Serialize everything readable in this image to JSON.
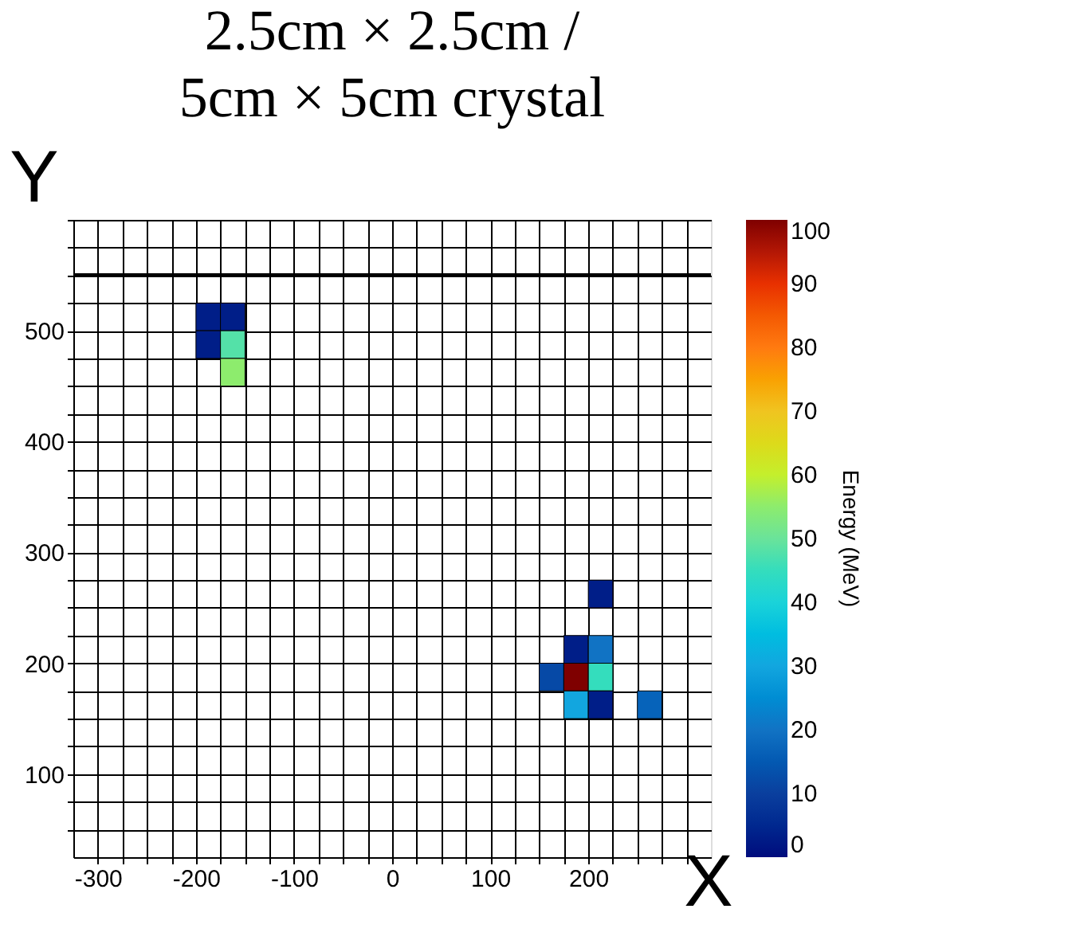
{
  "chart_data": {
    "type": "scatter",
    "title": "2.5cm × 2.5cm /\n5cm × 5cm crystal",
    "xlabel": "X",
    "ylabel": "Y",
    "clabel": "Energy (MeV)",
    "marker": "square",
    "x": [
      -187.5,
      -162.5,
      -187.5,
      -162.5,
      -162.5,
      212.5,
      187.5,
      212.5,
      162.5,
      187.5,
      212.5,
      187.5,
      212.5,
      262.5
    ],
    "values": [
      512.5,
      512.5,
      487.5,
      487.5,
      462.5,
      262.5,
      212.5,
      212.5,
      187.5,
      187.5,
      187.5,
      162.5,
      162.5,
      162.5
    ],
    "cvalues": [
      3,
      3,
      3,
      48,
      55,
      3,
      3,
      20,
      12,
      100,
      45,
      30,
      3,
      17
    ],
    "xlim": [
      -325,
      325
    ],
    "ylim": [
      25,
      600
    ],
    "xticks": [
      -300,
      {
        "value": -275,
        "label": null
      },
      {
        "value": -250,
        "label": null
      },
      {
        "value": -225,
        "label": null
      },
      -200,
      {
        "value": -175,
        "label": null
      },
      {
        "value": -150,
        "label": null
      },
      {
        "value": -125,
        "label": null
      },
      -100,
      {
        "value": -75,
        "label": null
      },
      {
        "value": -50,
        "label": null
      },
      {
        "value": -25,
        "label": null
      },
      0,
      {
        "value": 25,
        "label": null
      },
      {
        "value": 50,
        "label": null
      },
      {
        "value": 75,
        "label": null
      },
      100,
      {
        "value": 125,
        "label": null
      },
      {
        "value": 150,
        "label": null
      },
      {
        "value": 175,
        "label": null
      },
      200,
      {
        "value": 225,
        "label": null
      },
      {
        "value": 250,
        "label": null
      },
      {
        "value": 275,
        "label": null
      },
      {
        "value": 300,
        "label": null
      }
    ],
    "yticks": [
      {
        "value": 50,
        "label": null
      },
      {
        "value": 75,
        "label": null
      },
      100,
      {
        "value": 125,
        "label": null
      },
      {
        "value": 150,
        "label": null
      },
      {
        "value": 175,
        "label": null
      },
      200,
      {
        "value": 225,
        "label": null
      },
      {
        "value": 250,
        "label": null
      },
      {
        "value": 275,
        "label": null
      },
      300,
      {
        "value": 325,
        "label": null
      },
      {
        "value": 350,
        "label": null
      },
      {
        "value": 375,
        "label": null
      },
      400,
      {
        "value": 425,
        "label": null
      },
      {
        "value": 450,
        "label": null
      },
      {
        "value": 475,
        "label": null
      },
      500,
      {
        "value": 525,
        "label": null
      },
      {
        "value": 550,
        "label": null
      },
      {
        "value": 575,
        "label": null
      },
      {
        "value": 600,
        "label": null
      }
    ],
    "clim": [
      0,
      100
    ],
    "cticks": [
      0,
      10,
      20,
      30,
      40,
      50,
      60,
      70,
      80,
      90,
      100
    ],
    "ref_lines": [
      {
        "axis": "y",
        "value": 550,
        "label": null
      }
    ],
    "grid": true
  }
}
